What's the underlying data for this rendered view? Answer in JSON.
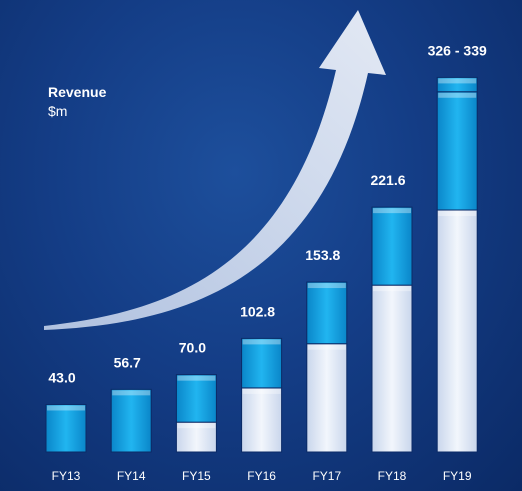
{
  "chart_data": {
    "type": "bar",
    "title": "Revenue",
    "ylabel": "$m",
    "categories": [
      "FY13",
      "FY14",
      "FY15",
      "FY16",
      "FY17",
      "FY18",
      "FY19"
    ],
    "value_labels": [
      "43.0",
      "56.7",
      "70.0",
      "102.8",
      "153.8",
      "221.6",
      "326 - 339"
    ],
    "series": [
      {
        "values": [
          0,
          0,
          27,
          58,
          98,
          151,
          219
        ]
      },
      {
        "values": [
          43.0,
          56.7,
          43.0,
          44.8,
          55.8,
          70.6,
          107
        ]
      },
      {
        "values": [
          0,
          0,
          0,
          0,
          0,
          0,
          13
        ]
      }
    ],
    "ylim": [
      0,
      345
    ],
    "grid": false,
    "legend": "none",
    "colors": {
      "background": "#143d86",
      "segment_base": "#e8eef8",
      "segment_mid": "#12a9e8",
      "segment_range": "#12a9e8",
      "arrow": "#e6ecf6",
      "label": "#ffffff"
    }
  }
}
